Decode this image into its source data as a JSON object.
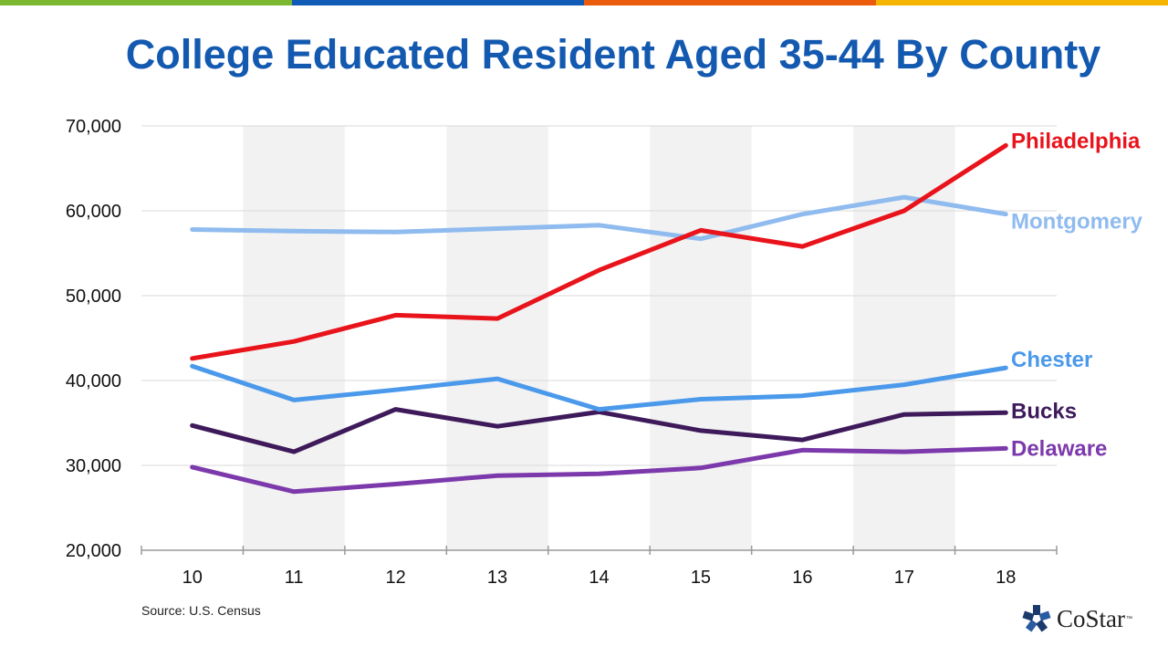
{
  "page": {
    "title": "College Educated Resident Aged 35-44 By County",
    "source": "Source: U.S. Census",
    "logo_text": "CoStar",
    "logo_tm": "™",
    "top_bar_colors": [
      "#7cb82f",
      "#0f5bb5",
      "#ea5b0c",
      "#f5b400"
    ]
  },
  "chart_data": {
    "type": "line",
    "title": "College Educated Resident Aged 35-44 By County",
    "xlabel": "",
    "ylabel": "",
    "x": [
      "10",
      "11",
      "12",
      "13",
      "14",
      "15",
      "16",
      "17",
      "18"
    ],
    "ylim": [
      20000,
      70000
    ],
    "yticks": [
      20000,
      30000,
      40000,
      50000,
      60000,
      70000
    ],
    "ytick_labels": [
      "20,000",
      "30,000",
      "40,000",
      "50,000",
      "60,000",
      "70,000"
    ],
    "grid": true,
    "alternating_column_shading": true,
    "series": [
      {
        "name": "Philadelphia",
        "color": "#e8131b",
        "values": [
          42600,
          44600,
          47700,
          47300,
          53000,
          57700,
          55800,
          60000,
          67700
        ]
      },
      {
        "name": "Montgomery",
        "color": "#8fbbef",
        "values": [
          57800,
          57600,
          57500,
          57900,
          58300,
          56700,
          59600,
          61600,
          59600
        ]
      },
      {
        "name": "Chester",
        "color": "#4b99eb",
        "values": [
          41700,
          37700,
          38900,
          40200,
          36600,
          37800,
          38200,
          39500,
          41500
        ]
      },
      {
        "name": "Bucks",
        "color": "#3e1a5b",
        "values": [
          34700,
          31600,
          36600,
          34600,
          36300,
          34100,
          33000,
          36000,
          36200
        ]
      },
      {
        "name": "Delaware",
        "color": "#7c39ab",
        "values": [
          29800,
          26900,
          27800,
          28800,
          29000,
          29700,
          31800,
          31600,
          32000
        ]
      }
    ]
  }
}
